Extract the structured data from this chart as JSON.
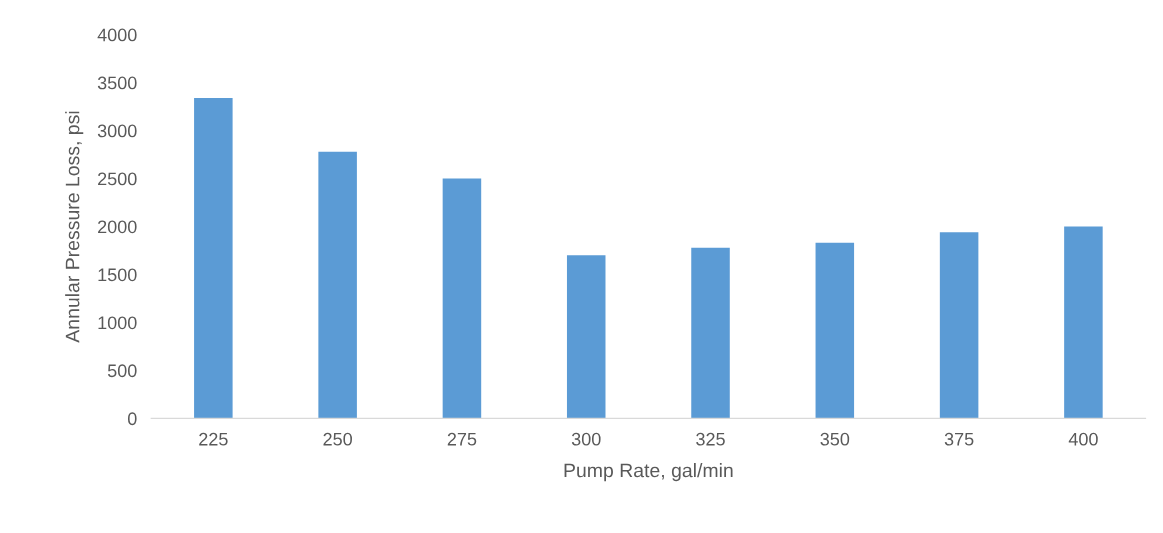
{
  "chart_data": {
    "type": "bar",
    "xlabel": "Pump Rate, gal/min",
    "ylabel": "Annular Pressure Loss, psi",
    "categories": [
      "225",
      "250",
      "275",
      "300",
      "325",
      "350",
      "375",
      "400"
    ],
    "values": [
      3340,
      2780,
      2500,
      1700,
      1780,
      1830,
      1940,
      2000
    ],
    "color": "#5b9bd5",
    "ylim": [
      0,
      4000
    ],
    "yticks": [
      0,
      500,
      1000,
      1500,
      2000,
      2500,
      3000,
      3500,
      4000
    ],
    "grid": false
  }
}
